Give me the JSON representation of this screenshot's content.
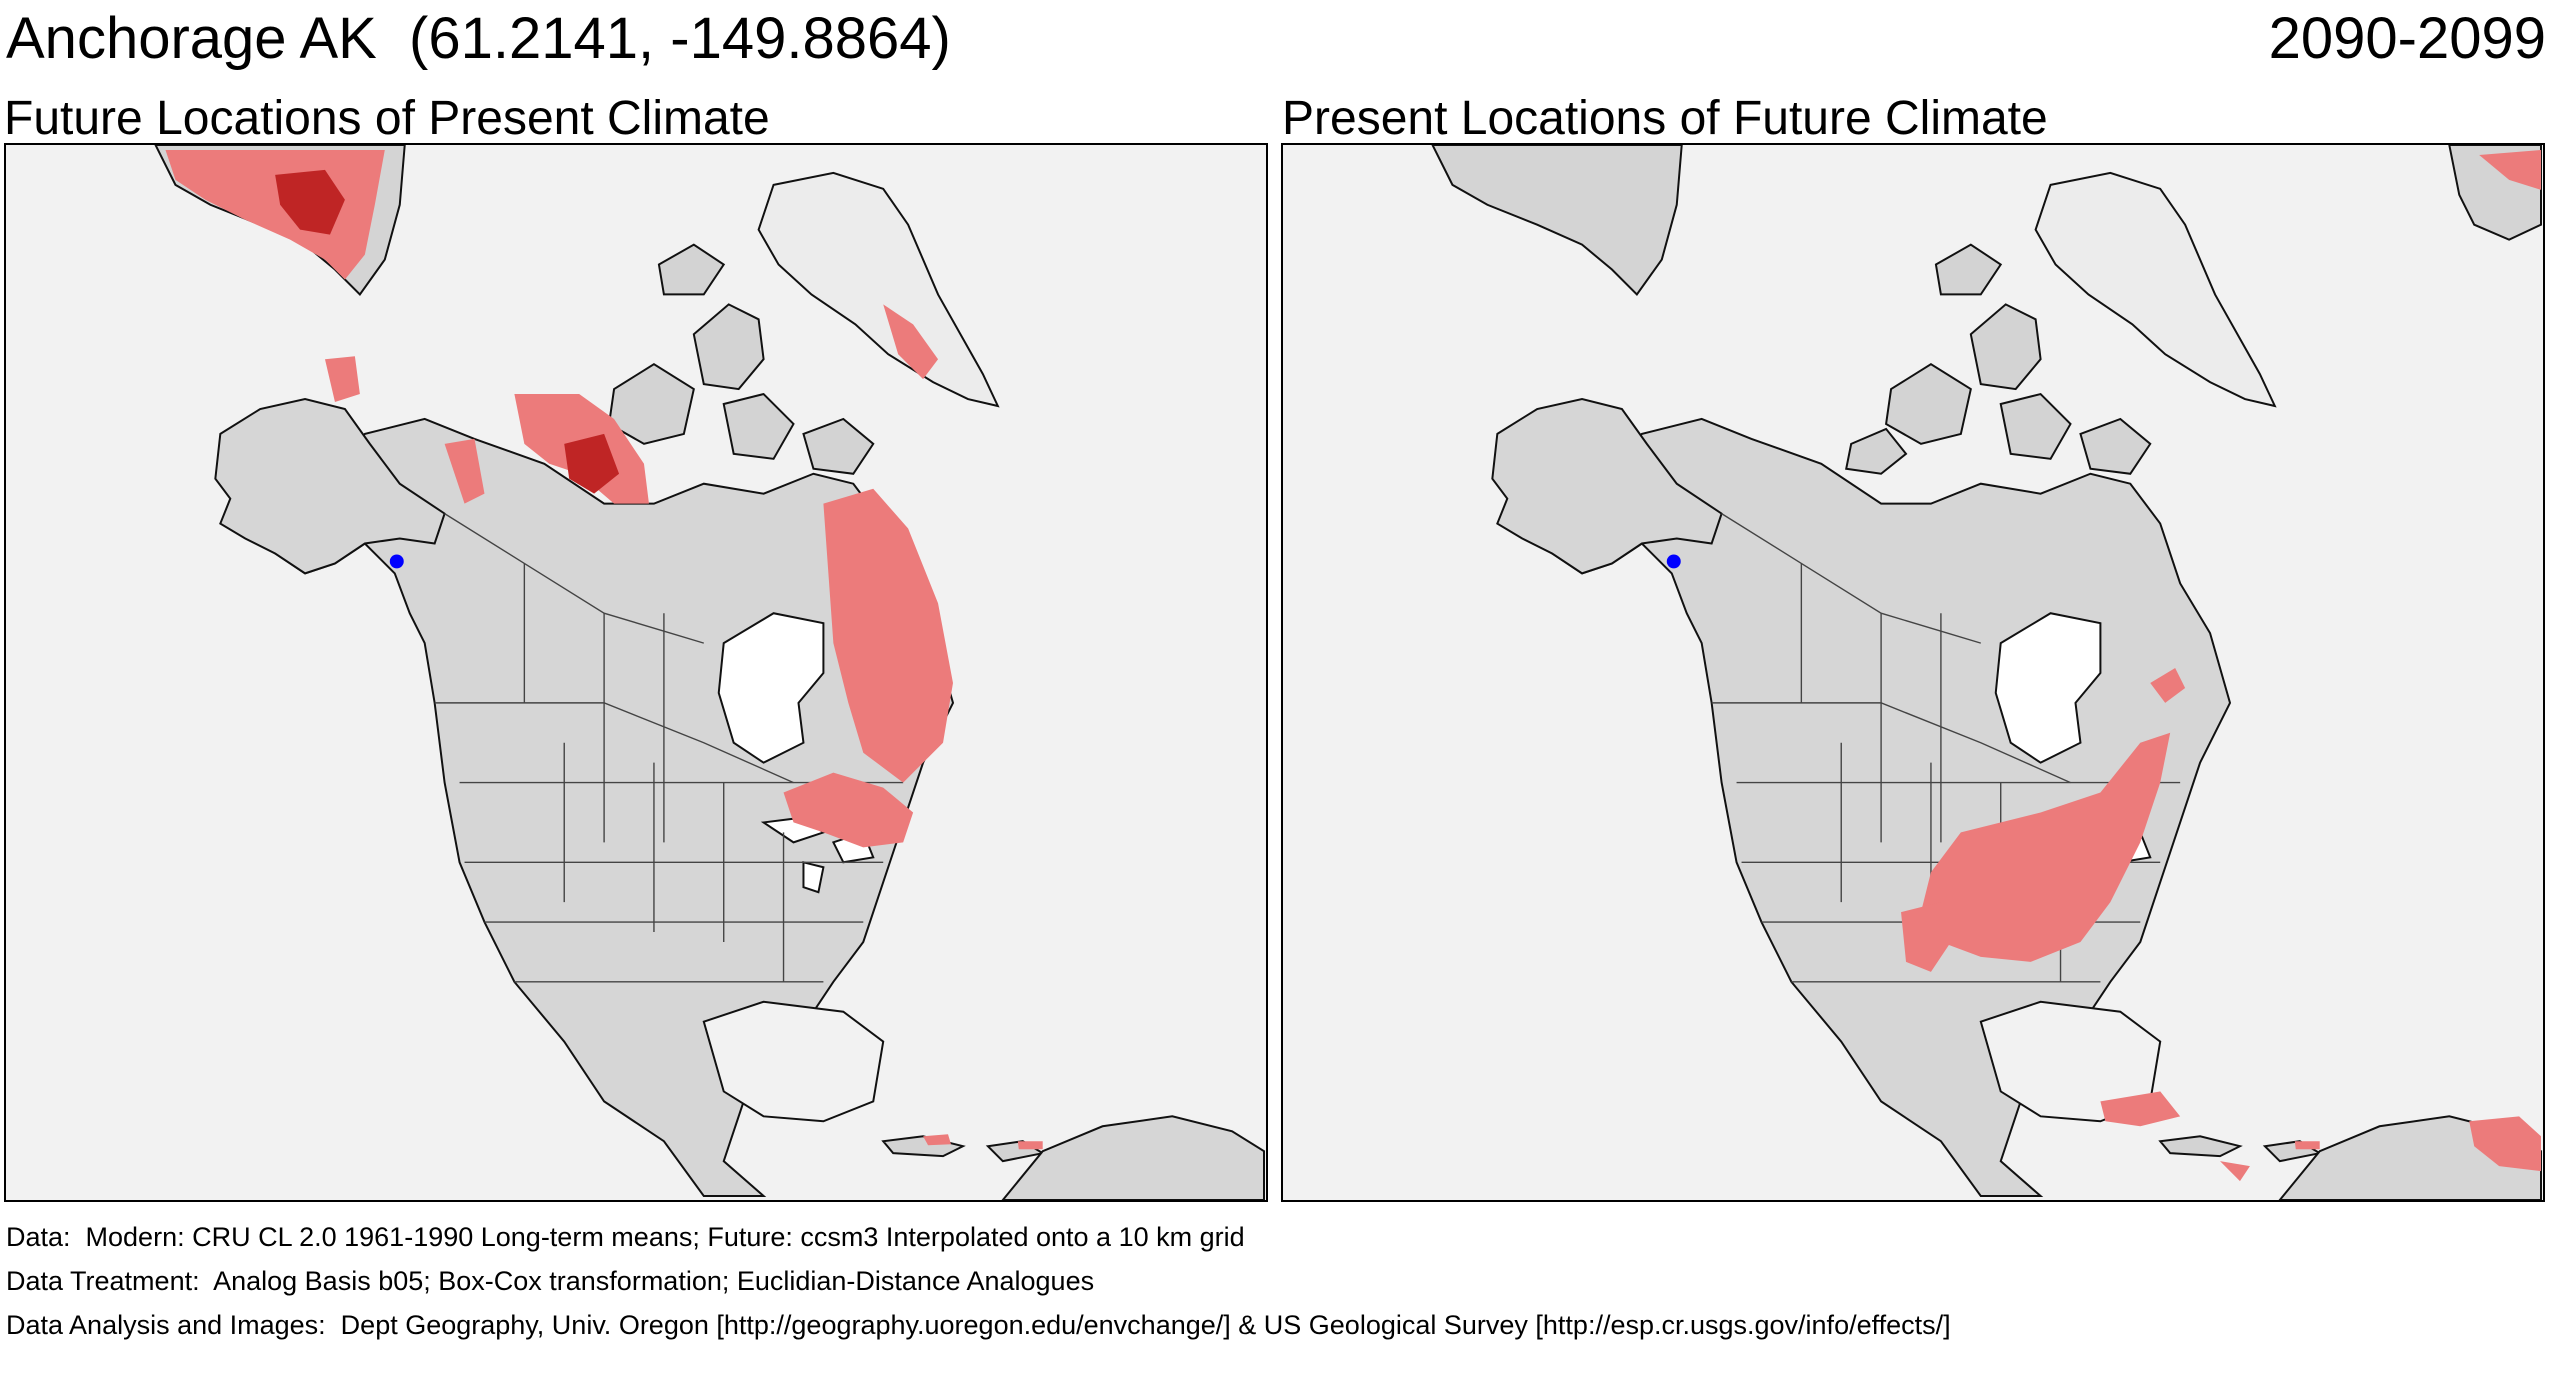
{
  "header": {
    "location_title": "Anchorage AK  (61.2141, -149.8864)",
    "period": "2090-2099"
  },
  "panels": [
    {
      "title": "Future Locations of Present Climate",
      "marker": {
        "label": "Anchorage AK",
        "lat": 61.2141,
        "lon": -149.8864,
        "color": "#0000ff"
      }
    },
    {
      "title": "Present Locations of Future Climate",
      "marker": {
        "label": "Anchorage AK",
        "lat": 61.2141,
        "lon": -149.8864,
        "color": "#0000ff"
      }
    }
  ],
  "colors": {
    "ocean_background": "#f2f2f2",
    "land": "#d6d6d6",
    "ice": "#ececec",
    "analog_light": "#ec7b7b",
    "analog_dark": "#bf2525",
    "marker": "#0000ff"
  },
  "footer": {
    "data": "Data:  Modern: CRU CL 2.0 1961-1990 Long-term means; Future: ccsm3 Interpolated onto a 10 km grid",
    "treatment": "Data Treatment:  Analog Basis b05; Box-Cox transformation; Euclidian-Distance Analogues",
    "analysis": "Data Analysis and Images:  Dept Geography, Univ. Oregon [http://geography.uoregon.edu/envchange/] & US Geological Survey [http://esp.cr.usgs.gov/info/effects/]"
  }
}
